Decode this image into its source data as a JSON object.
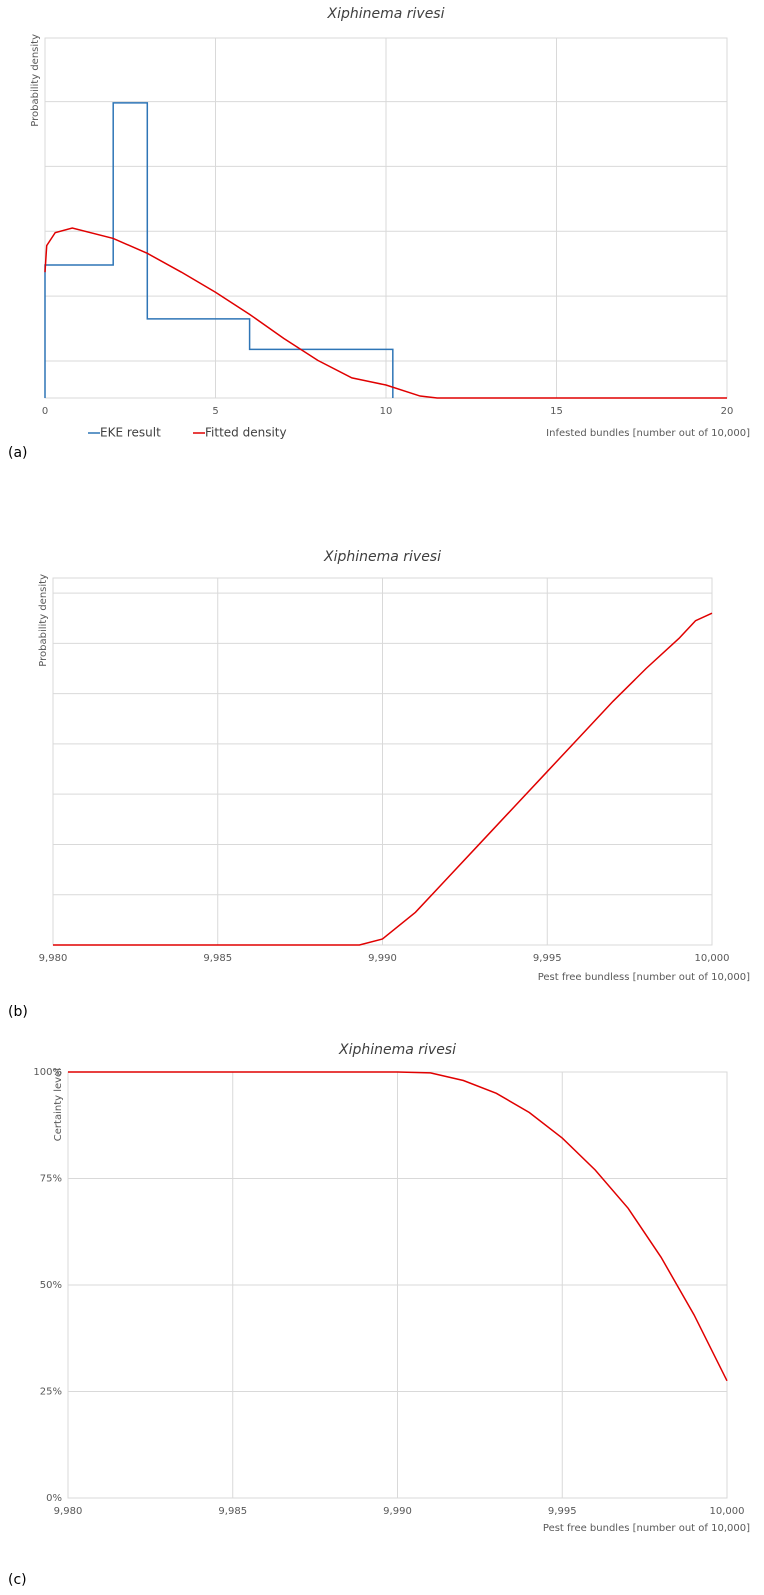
{
  "chart_data": [
    {
      "type": "line",
      "title": "Xiphinema rivesi",
      "panel_label": "(a)",
      "x_label": "Infested bundles [number out of 10,000]",
      "y_label": "Probability density",
      "xlim": [
        0,
        20
      ],
      "xticks": [
        0,
        5,
        10,
        15,
        20
      ],
      "ylim": [
        0,
        5.55
      ],
      "yticks": [
        0.57,
        1.57,
        2.57,
        3.57,
        4.57
      ],
      "ytick_labels": false,
      "grid": true,
      "legend": "bottom-left",
      "series": [
        {
          "name": "EKE result",
          "color": "#2e75b6",
          "x": [
            0,
            0,
            2,
            2,
            3,
            3,
            6,
            6,
            10.2,
            10.2
          ],
          "values": [
            0,
            2.05,
            2.05,
            4.55,
            4.55,
            1.22,
            1.22,
            0.75,
            0.75,
            0
          ]
        },
        {
          "name": "Fitted density",
          "color": "#e00000",
          "x": [
            0,
            0.05,
            0.3,
            0.8,
            2,
            3,
            4,
            5,
            6,
            7,
            8,
            9,
            10,
            11,
            11.5,
            20
          ],
          "values": [
            1.94,
            2.35,
            2.55,
            2.62,
            2.46,
            2.23,
            1.94,
            1.63,
            1.29,
            0.92,
            0.58,
            0.31,
            0.2,
            0.03,
            0,
            0
          ]
        }
      ]
    },
    {
      "type": "line",
      "title": "Xiphinema rivesi",
      "panel_label": "(b)",
      "x_label": "Pest free bundless [number out of 10,000]",
      "y_label": "Probability density",
      "xlim": [
        9980,
        10000
      ],
      "xticks": [
        {
          "value": 9980,
          "label": "9,980"
        },
        {
          "value": 9985,
          "label": "9,985"
        },
        {
          "value": 9990,
          "label": "9,990"
        },
        {
          "value": 9995,
          "label": "9,995"
        },
        {
          "value": 10000,
          "label": "10,000"
        }
      ],
      "ylim": [
        0,
        7.3
      ],
      "yticks": [
        1,
        2,
        3,
        4,
        5,
        6,
        7
      ],
      "ytick_labels": false,
      "grid": true,
      "series": [
        {
          "color": "#e00000",
          "x": [
            9980,
            9989.3,
            9990,
            9991,
            9992,
            9993,
            9994,
            9995,
            9996,
            9997,
            9998,
            9999,
            9999.5,
            10000
          ],
          "values": [
            0,
            0,
            0.12,
            0.65,
            1.35,
            2.05,
            2.75,
            3.45,
            4.15,
            4.85,
            5.5,
            6.1,
            6.45,
            6.6
          ]
        }
      ]
    },
    {
      "type": "line",
      "title": "Xiphinema rivesi",
      "panel_label": "(c)",
      "x_label": "Pest free bundles [number out of 10,000]",
      "y_label": "Certainty level",
      "xlim": [
        9980,
        10000
      ],
      "xticks": [
        {
          "value": 9980,
          "label": "9,980"
        },
        {
          "value": 9985,
          "label": "9,985"
        },
        {
          "value": 9990,
          "label": "9,990"
        },
        {
          "value": 9995,
          "label": "9,995"
        },
        {
          "value": 10000,
          "label": "10,000"
        }
      ],
      "ylim": [
        0,
        100
      ],
      "yticks": [
        {
          "value": 0,
          "label": "0%"
        },
        {
          "value": 25,
          "label": "25%"
        },
        {
          "value": 50,
          "label": "50%"
        },
        {
          "value": 75,
          "label": "75%"
        },
        {
          "value": 100,
          "label": "100%"
        }
      ],
      "grid": true,
      "series": [
        {
          "color": "#e00000",
          "x": [
            9980,
            9990,
            9991,
            9992,
            9993,
            9994,
            9995,
            9996,
            9997,
            9998,
            9999,
            10000
          ],
          "values": [
            100,
            100,
            99.8,
            98,
            95,
            90.5,
            84.5,
            77,
            68,
            56.5,
            43,
            27.5
          ]
        }
      ]
    }
  ]
}
